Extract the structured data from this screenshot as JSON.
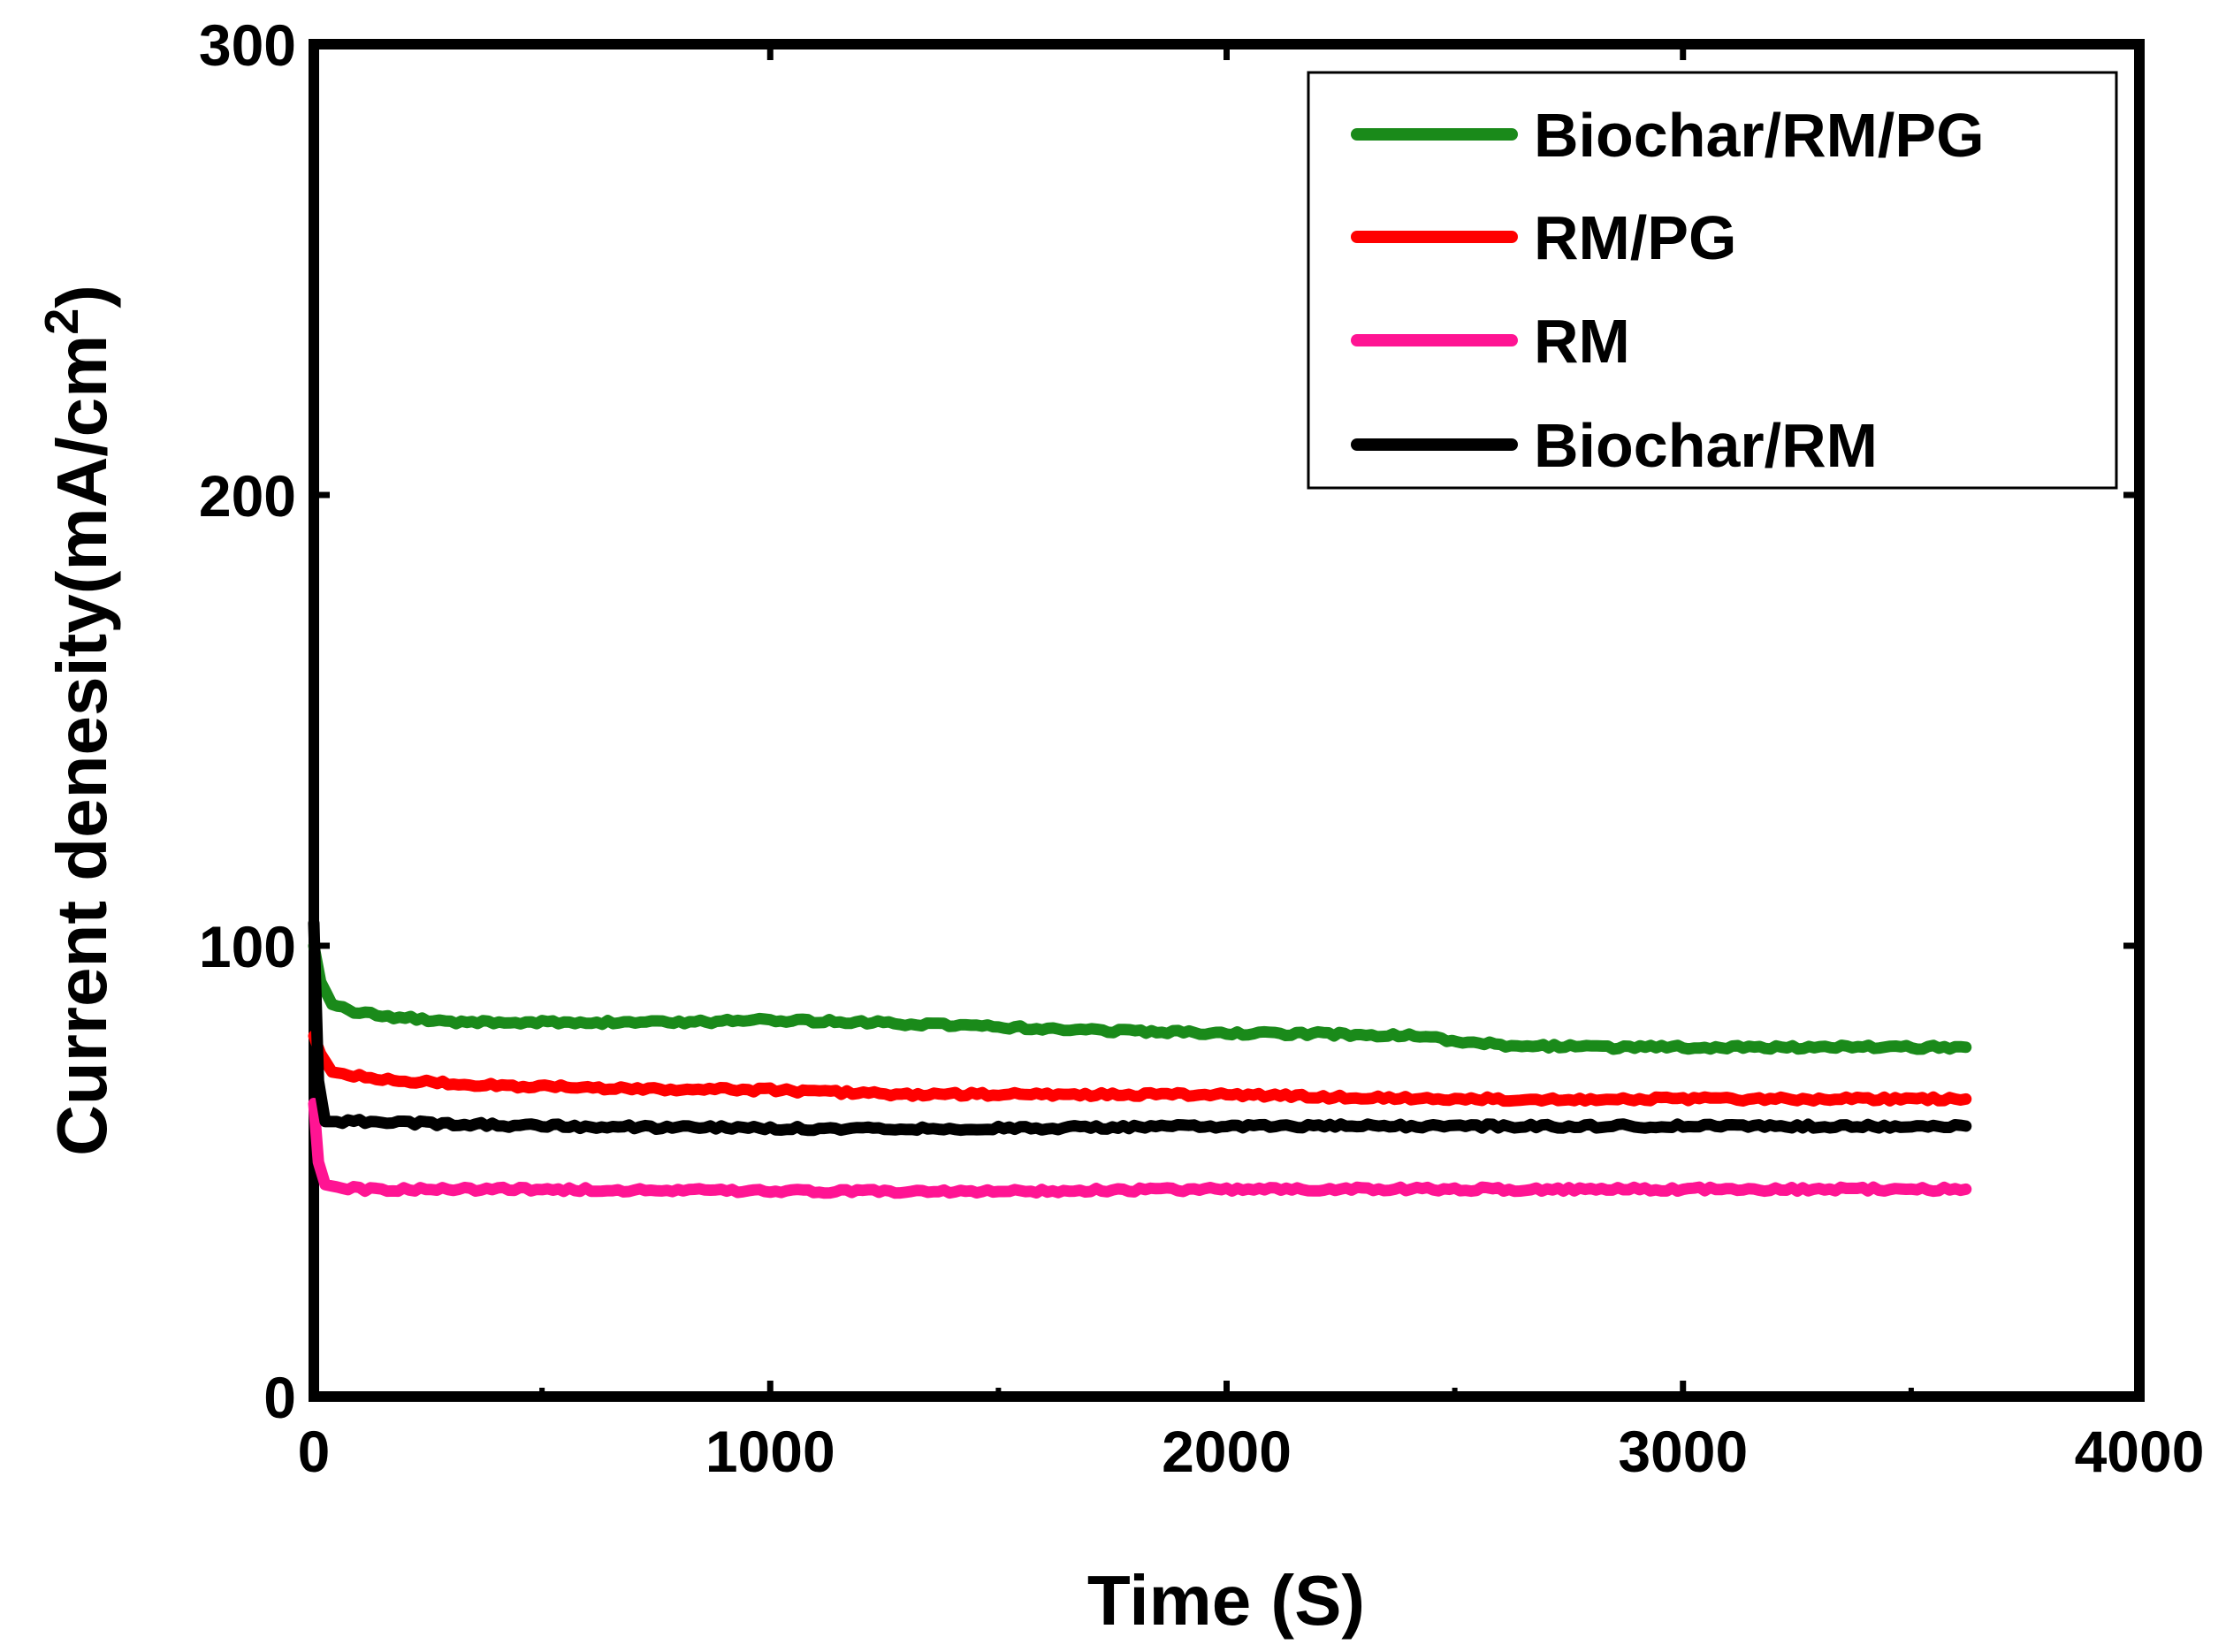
{
  "chart_data": {
    "type": "line",
    "title": "",
    "xlabel": "Time (S)",
    "ylabel_main": "Current denesity(mA/cm",
    "ylabel_sup": "2",
    "ylabel_close": ")",
    "xlim": [
      0,
      4000
    ],
    "ylim": [
      0,
      300
    ],
    "xticks": [
      0,
      1000,
      2000,
      3000,
      4000
    ],
    "yticks": [
      0,
      100,
      200,
      300
    ],
    "xtick_labels": [
      "0",
      "1000",
      "2000",
      "3000",
      "4000"
    ],
    "ytick_labels": [
      "0",
      "100",
      "200",
      "300"
    ],
    "grid": false,
    "legend_position": "top-right",
    "series": [
      {
        "name": "Biochar/RM/PG",
        "color": "#1a8a1a",
        "x": [
          0,
          15,
          40,
          100,
          200,
          300,
          500,
          800,
          1000,
          1200,
          1500,
          1800,
          2000,
          2200,
          2400,
          2600,
          2800,
          3000,
          3300,
          3620
        ],
        "y": [
          100,
          92,
          87,
          85,
          84,
          83,
          83,
          83,
          83.5,
          83,
          82,
          81,
          80.5,
          80.5,
          80,
          78,
          77.5,
          77.5,
          77.5,
          77.5
        ]
      },
      {
        "name": "RM/PG",
        "color": "#ff0000",
        "x": [
          0,
          15,
          40,
          100,
          200,
          400,
          600,
          1000,
          1300,
          1500,
          2000,
          2200,
          2500,
          3000,
          3620
        ],
        "y": [
          80,
          76,
          72,
          71,
          70,
          69,
          68.5,
          68,
          67,
          67,
          67,
          66.5,
          66,
          66,
          66
        ]
      },
      {
        "name": "RM",
        "color": "#ff1493",
        "x": [
          0,
          10,
          25,
          50,
          100,
          500,
          1000,
          1500,
          2000,
          2500,
          3000,
          3620
        ],
        "y": [
          65,
          52,
          47,
          46.5,
          46,
          46,
          45.5,
          45.5,
          46,
          46,
          46,
          46
        ]
      },
      {
        "name": "Biochar/RM",
        "color": "#000000",
        "x": [
          0,
          10,
          25,
          50,
          100,
          500,
          1000,
          1500,
          2000,
          2500,
          3000,
          3620
        ],
        "y": [
          105,
          70,
          61,
          61,
          61,
          60,
          59.5,
          59.5,
          60,
          60,
          60,
          60
        ]
      }
    ]
  }
}
